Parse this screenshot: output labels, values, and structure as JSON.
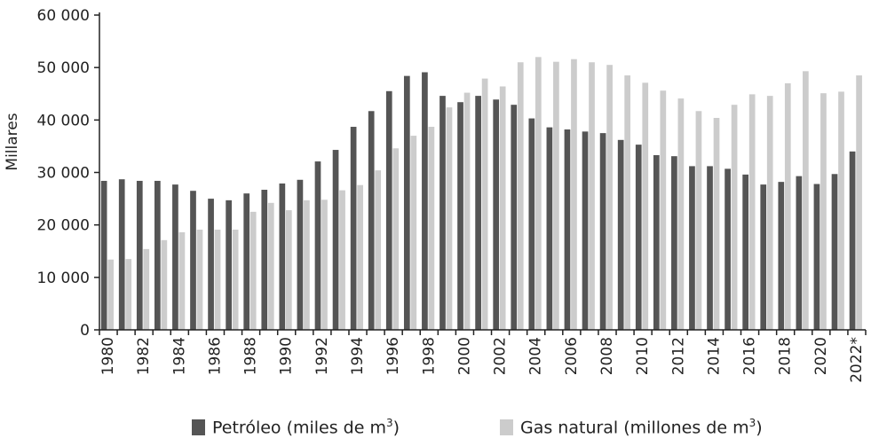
{
  "chart_data": {
    "type": "bar",
    "ylabel": "Millares",
    "ylim": [
      0,
      60000
    ],
    "yticks": [
      0,
      10000,
      20000,
      30000,
      40000,
      50000,
      60000
    ],
    "ytick_labels": [
      "0",
      "10 000",
      "20 000",
      "30 000",
      "40 000",
      "50 000",
      "60 000"
    ],
    "categories": [
      "1980",
      "1981",
      "1982",
      "1983",
      "1984",
      "1985",
      "1986",
      "1987",
      "1988",
      "1989",
      "1990",
      "1991",
      "1992",
      "1993",
      "1994",
      "1995",
      "1996",
      "1997",
      "1998",
      "1999",
      "2000",
      "2001",
      "2002",
      "2003",
      "2004",
      "2005",
      "2006",
      "2007",
      "2008",
      "2009",
      "2010",
      "2011",
      "2012",
      "2013",
      "2014",
      "2015",
      "2016",
      "2017",
      "2018",
      "2019",
      "2020",
      "2021",
      "2022*"
    ],
    "xtick_labels": [
      "1980",
      "1982",
      "1984",
      "1986",
      "1988",
      "1990",
      "1992",
      "1994",
      "1996",
      "1998",
      "2000",
      "2002",
      "2004",
      "2006",
      "2008",
      "2010",
      "2012",
      "2014",
      "2016",
      "2018",
      "2020",
      "2022*"
    ],
    "series": [
      {
        "name": "Petróleo (miles de m3)",
        "name_main": "Petróleo (miles de m",
        "name_sup": "3",
        "name_end": ")",
        "color": "#555555",
        "values": [
          28400,
          28700,
          28400,
          28400,
          27700,
          26500,
          25000,
          24700,
          26000,
          26700,
          27900,
          28600,
          32100,
          34300,
          38700,
          41700,
          45500,
          48400,
          49100,
          44600,
          43400,
          44600,
          43900,
          42900,
          40300,
          38600,
          38200,
          37800,
          37500,
          36200,
          35300,
          33300,
          33100,
          31200,
          31200,
          30700,
          29600,
          27700,
          28200,
          29300,
          27800,
          29700,
          34000
        ]
      },
      {
        "name": "Gas natural (millones de m3)",
        "name_main": "Gas natural (millones de m",
        "name_sup": "3",
        "name_end": ")",
        "color": "#cccccc",
        "values": [
          13400,
          13500,
          15400,
          17100,
          18600,
          19100,
          19100,
          19100,
          22500,
          24200,
          22800,
          24700,
          24800,
          26600,
          27600,
          30400,
          34600,
          37000,
          38700,
          42400,
          45200,
          47900,
          46400,
          51000,
          52000,
          51100,
          51600,
          51000,
          50500,
          48500,
          47100,
          45600,
          44100,
          41700,
          40400,
          42900,
          44900,
          44600,
          47000,
          49300,
          45100,
          45400,
          48500
        ]
      }
    ]
  }
}
